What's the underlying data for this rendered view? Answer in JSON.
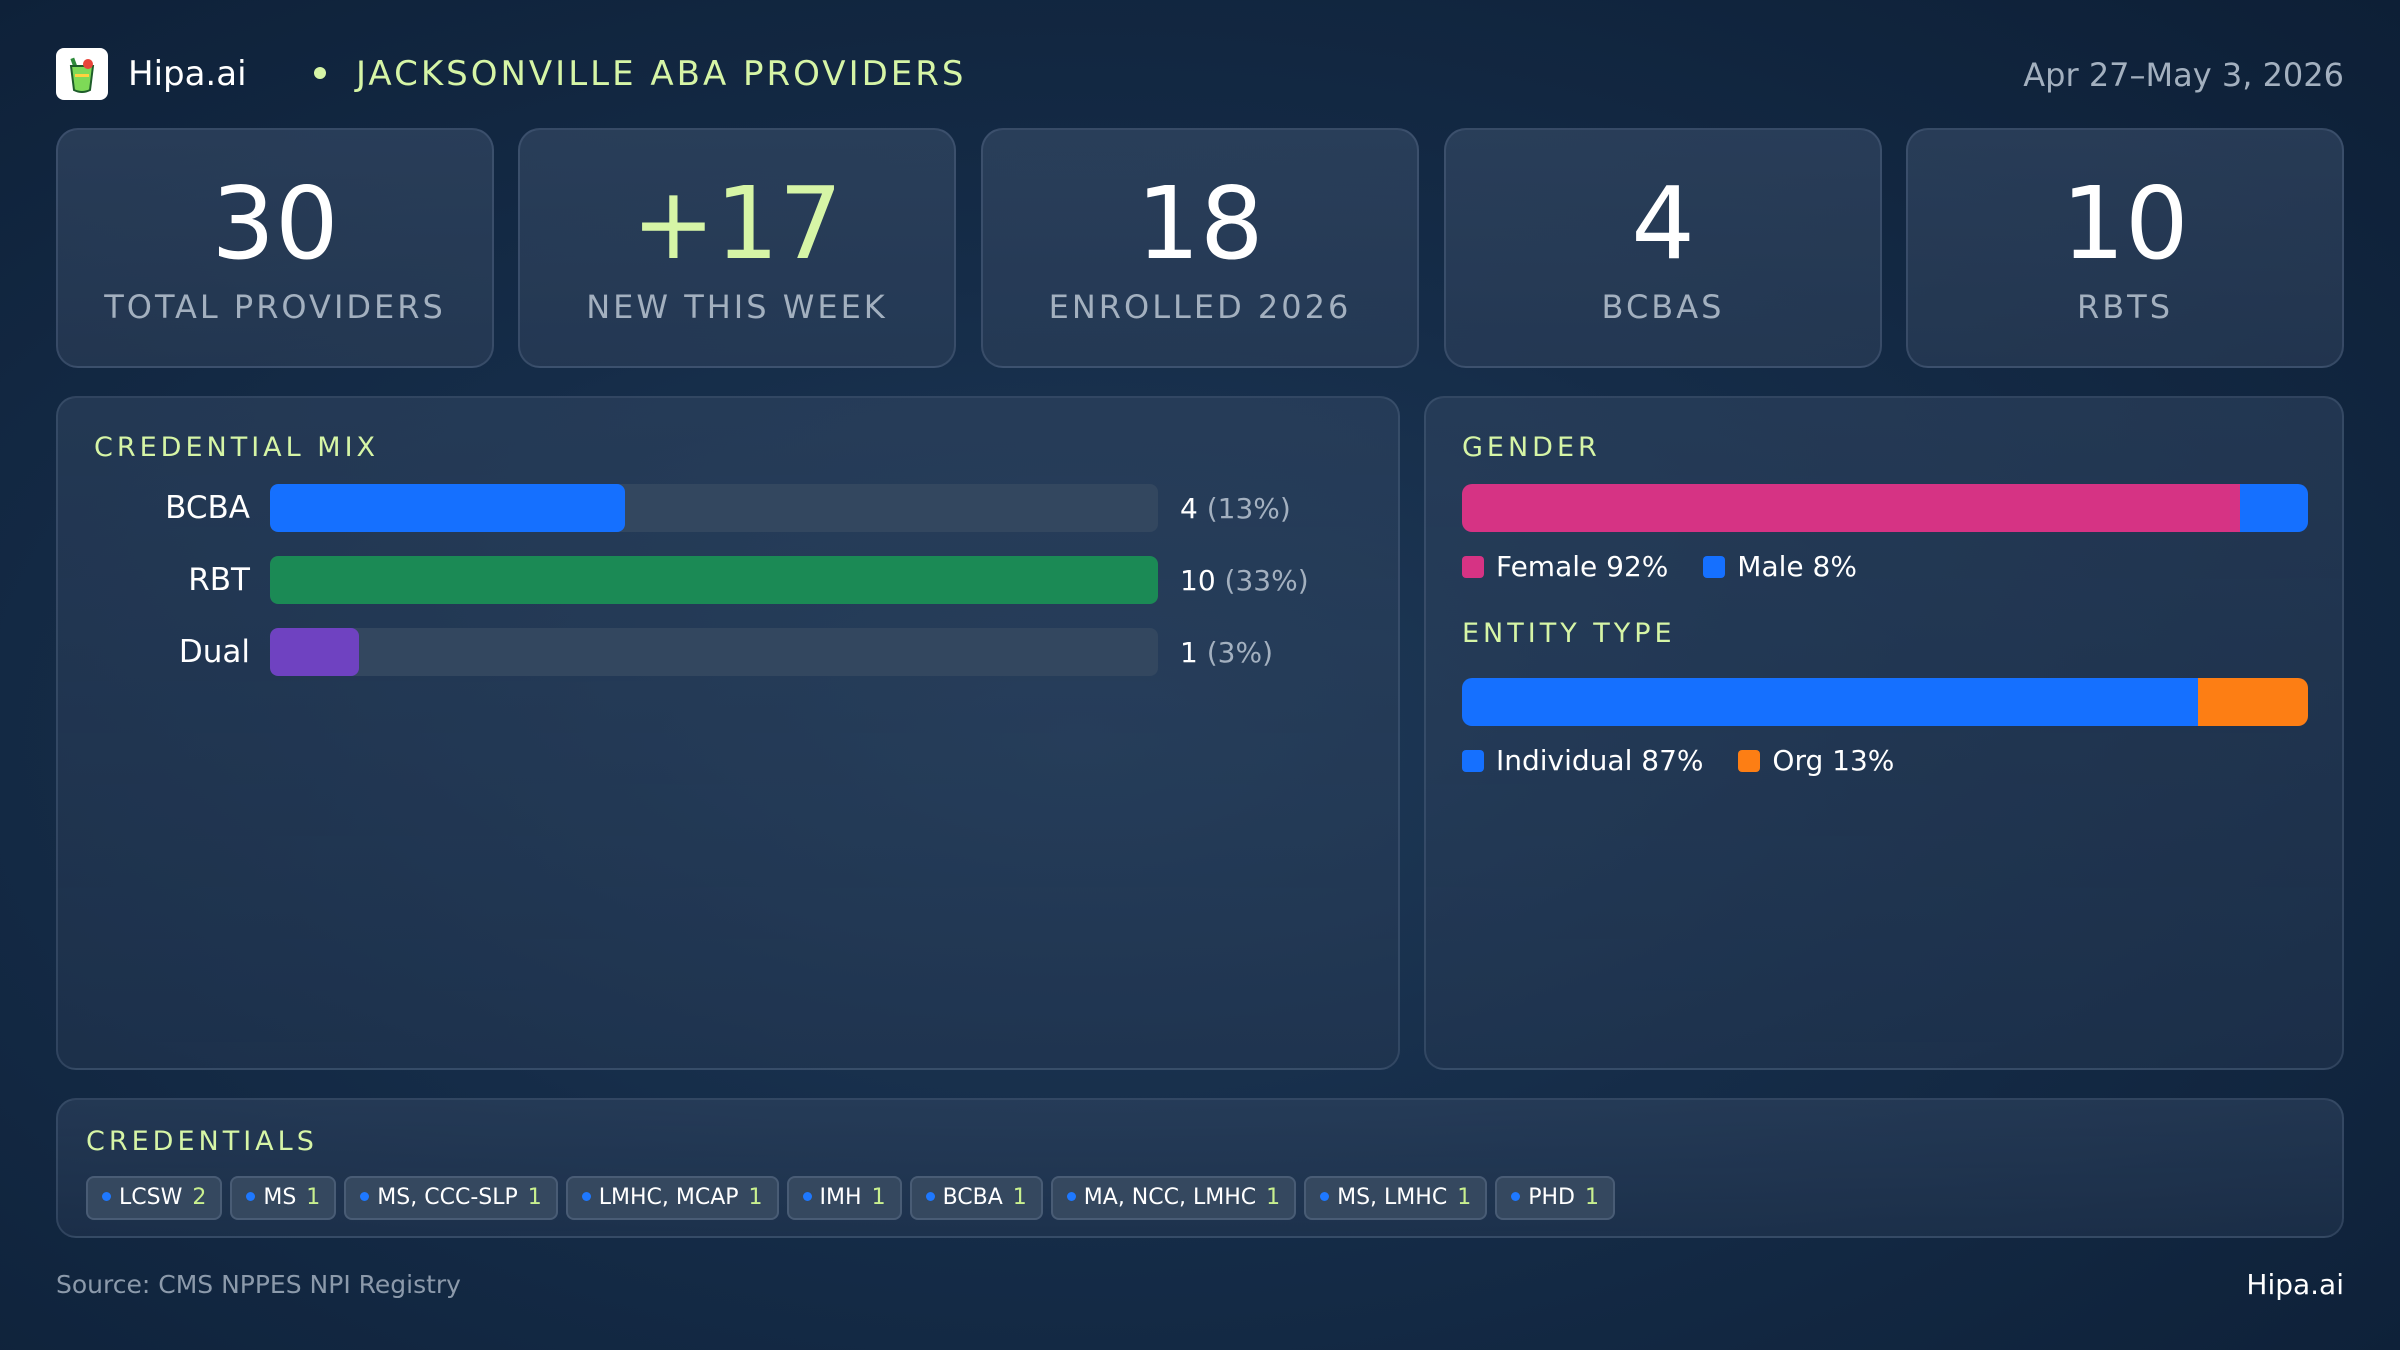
{
  "header": {
    "brand": "Hipa.ai",
    "title": "JACKSONVILLE ABA PROVIDERS",
    "date_range": "Apr 27–May 3, 2026",
    "logo_icon": "drink-cup-icon"
  },
  "kpis": [
    {
      "value": "30",
      "label": "TOTAL PROVIDERS"
    },
    {
      "value": "+17",
      "label": "NEW THIS WEEK"
    },
    {
      "value": "18",
      "label": "ENROLLED 2026"
    },
    {
      "value": "4",
      "label": "BCBAS"
    },
    {
      "value": "10",
      "label": "RBTS"
    }
  ],
  "credential_mix": {
    "title": "CREDENTIAL MIX",
    "rows": [
      {
        "label": "BCBA",
        "count": "4",
        "pct": "(13%)",
        "fraction": 0.4,
        "color": "#1570ff"
      },
      {
        "label": "RBT",
        "count": "10",
        "pct": "(33%)",
        "fraction": 1.0,
        "color": "#1b8a55"
      },
      {
        "label": "Dual",
        "count": "1",
        "pct": "(3%)",
        "fraction": 0.1,
        "color": "#6f42c1"
      }
    ]
  },
  "gender": {
    "title": "GENDER",
    "segments": [
      {
        "label": "Female 92%",
        "fraction": 0.92,
        "color": "#d63384"
      },
      {
        "label": "Male 8%",
        "fraction": 0.08,
        "color": "#1570ff"
      }
    ]
  },
  "entity_type": {
    "title": "ENTITY TYPE",
    "segments": [
      {
        "label": "Individual 87%",
        "fraction": 0.87,
        "color": "#1570ff"
      },
      {
        "label": "Org 13%",
        "fraction": 0.13,
        "color": "#fd7e14"
      }
    ]
  },
  "credentials": {
    "title": "CREDENTIALS",
    "chips": [
      {
        "name": "LCSW",
        "count": "2"
      },
      {
        "name": "MS",
        "count": "1"
      },
      {
        "name": "MS, CCC-SLP",
        "count": "1"
      },
      {
        "name": "LMHC, MCAP",
        "count": "1"
      },
      {
        "name": "IMH",
        "count": "1"
      },
      {
        "name": "BCBA",
        "count": "1"
      },
      {
        "name": "MA, NCC, LMHC",
        "count": "1"
      },
      {
        "name": "MS, LMHC",
        "count": "1"
      },
      {
        "name": "PHD",
        "count": "1"
      }
    ]
  },
  "footer": {
    "source": "Source: CMS NPPES NPI Registry",
    "brand": "Hipa.ai"
  }
}
